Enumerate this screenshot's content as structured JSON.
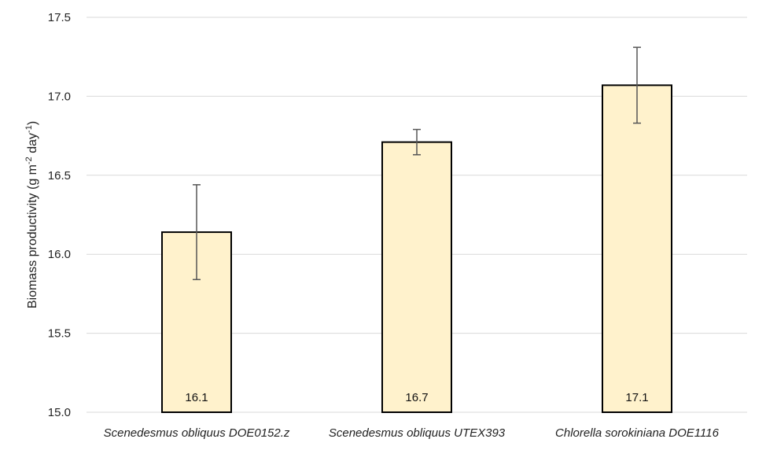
{
  "chart_data": {
    "type": "bar",
    "title": "",
    "xlabel": "",
    "ylabel": {
      "parts": [
        {
          "text": "Biomass productivity (g m",
          "sup": false
        },
        {
          "text": "-2",
          "sup": true
        },
        {
          "text": " day",
          "sup": false
        },
        {
          "text": "-1",
          "sup": true
        },
        {
          "text": ")",
          "sup": false
        }
      ]
    },
    "categories": [
      "Scenedesmus obliquus DOE0152.z",
      "Scenedesmus obliquus UTEX393",
      "Chlorella sorokiniana DOE1116"
    ],
    "values": [
      16.14,
      16.71,
      17.07
    ],
    "error": [
      0.3,
      0.08,
      0.24
    ],
    "data_labels": [
      "16.1",
      "16.7",
      "17.1"
    ],
    "ylim": [
      15.0,
      17.5
    ],
    "yticks": [
      15.0,
      15.5,
      16.0,
      16.5,
      17.0,
      17.5
    ],
    "ytick_labels": [
      "15.0",
      "15.5",
      "16.0",
      "16.5",
      "17.0",
      "17.5"
    ],
    "grid": true,
    "legend": "none",
    "colors": {
      "bar_fill": "#FFF2CC",
      "bar_stroke": "#000000",
      "grid": "#D9D9D9",
      "error_bar": "#555555"
    }
  }
}
